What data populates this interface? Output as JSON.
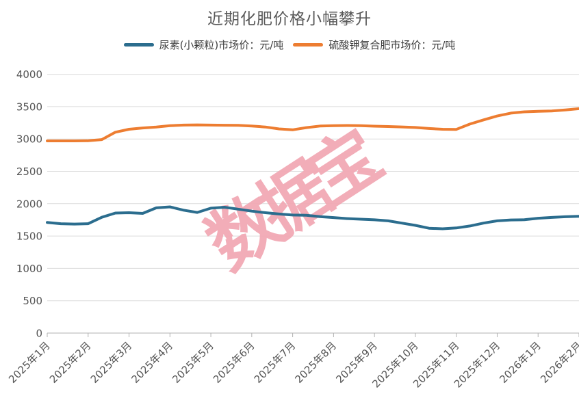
{
  "title": "近期化肥价格小幅攀升",
  "legend": {
    "items": [
      {
        "label": "尿素(小颗粒)市场价：元/吨",
        "color": "#2b6d8e"
      },
      {
        "label": "硫酸钾复合肥市场价：元/吨",
        "color": "#ed7d31"
      }
    ]
  },
  "watermark": {
    "text": "数据宝",
    "color": "#f2a9b5"
  },
  "axis": {
    "grid_color": "#dcdcdc",
    "axis_color": "#c0c0c0",
    "tick_color": "#b0b0b0",
    "label_color": "#555555"
  },
  "chart_data": {
    "type": "line",
    "title": "近期化肥价格小幅攀升",
    "xlabel": "",
    "ylabel": "",
    "ylim": [
      0,
      4000
    ],
    "y_ticks": [
      0,
      500,
      1000,
      1500,
      2000,
      2500,
      3000,
      3500,
      4000
    ],
    "grid": true,
    "legend_position": "top",
    "x_tick_labels": [
      "2025年1月",
      "2025年2月",
      "2025年3月",
      "2025年4月",
      "2025年5月",
      "2025年6月",
      "2025年7月",
      "2025年8月",
      "2025年9月",
      "2025年10月",
      "2025年11月",
      "2025年12月",
      "2026年1月",
      "2026年2月"
    ],
    "points_per_label": 3,
    "series": [
      {
        "name": "尿素(小颗粒)市场价：元/吨",
        "color": "#2b6d8e",
        "values": [
          1710,
          1690,
          1685,
          1690,
          1790,
          1855,
          1860,
          1850,
          1935,
          1950,
          1900,
          1865,
          1930,
          1945,
          1915,
          1885,
          1860,
          1840,
          1825,
          1820,
          1800,
          1785,
          1770,
          1760,
          1750,
          1735,
          1700,
          1665,
          1620,
          1612,
          1625,
          1655,
          1700,
          1735,
          1748,
          1752,
          1775,
          1788,
          1798,
          1805
        ]
      },
      {
        "name": "硫酸钾复合肥市场价：元/吨",
        "color": "#ed7d31",
        "values": [
          2970,
          2970,
          2970,
          2972,
          2990,
          3105,
          3150,
          3170,
          3185,
          3205,
          3215,
          3218,
          3215,
          3212,
          3210,
          3200,
          3185,
          3155,
          3142,
          3175,
          3200,
          3205,
          3208,
          3205,
          3198,
          3192,
          3186,
          3178,
          3162,
          3150,
          3148,
          3230,
          3295,
          3355,
          3400,
          3420,
          3428,
          3432,
          3448,
          3468
        ]
      }
    ]
  }
}
